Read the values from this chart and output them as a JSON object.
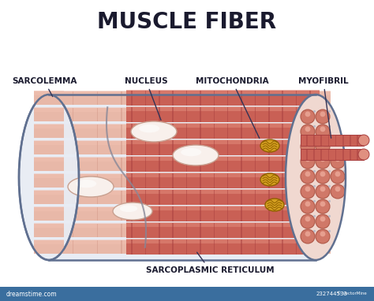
{
  "title": "MUSCLE FIBER",
  "title_fontsize": 20,
  "title_fontweight": "bold",
  "labels": {
    "sarcolemma": "SARCOLEMMA",
    "nucleus": "NUCLEUS",
    "mitochondria": "MITOCHONDRIA",
    "myofibril": "MYOFIBRIL",
    "sarcoplasmic_reticulum": "SARCOPLASMIC RETICULUM"
  },
  "label_fontsize": 7.5,
  "label_fontweight": "bold",
  "bg_color": "#ffffff",
  "fiber_outer_color": "#e8b8a8",
  "fiber_outer_stripe": "#d49888",
  "fiber_inner_color": "#c96055",
  "fiber_inner_stripe": "#a84040",
  "fiber_highlight": "#f0c0b0",
  "nucleus_fill": "#f8f0ec",
  "nucleus_outline": "#c8a090",
  "mito_fill": "#d4a020",
  "mito_outline": "#906000",
  "sarcolemma_outline": "#607090",
  "sarcolemma_bg": "#e8ecf4",
  "cross_bg": "#f0d8d0",
  "cross_circle_color": "#d07868",
  "cross_circle_edge": "#b05848",
  "cross_dot_color": "#a0b0c8",
  "protrude_color": "#c96055",
  "label_color": "#1a1a2e",
  "line_color": "#333355",
  "bar_color": "#3a6e9e",
  "watermark_color": "#aaaaaa"
}
